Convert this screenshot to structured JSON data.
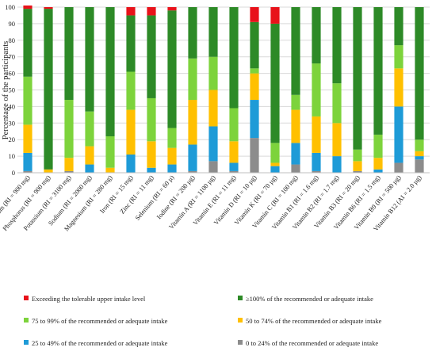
{
  "chart_data": {
    "type": "bar",
    "stacked": true,
    "ylabel": "Percentage of the participants",
    "ylim": [
      0,
      100
    ],
    "yticks": [
      0,
      10,
      20,
      30,
      40,
      50,
      60,
      70,
      80,
      90,
      100
    ],
    "grid": true,
    "legend_position": "bottom",
    "categories": [
      "Calcium (RI = 900 mg)",
      "Phosphorus (RI = 900 mg)",
      "Potassium (RI = 3100 mg)",
      "Sodium (RI = 2000 mg)",
      "Magnesium (RI = 280 mg)",
      "Iron (RI = 15 mg)",
      "Zinc (RI = 11 mg)",
      "Selenium (RI = 60 µ)",
      "Iodine (RI = 200 µg)",
      "Vitamin A (RI = 1100 µg)",
      "Vitamin E (RI = 11 mg)",
      "Vitamin D (RI = 10 µg)",
      "Vitamin K (RI = 70 µg)",
      "Vitamin C (RI = 100 mg)",
      "Vitamin B1 (RI = 1.6 mg)",
      "Vitamin B2 (RI = 1.7 mg)",
      "Vitamin B3 (RI = 20 mg)",
      "Vitamin B6 (RI = 1.5 mg)",
      "Vitamin B9 (RI = 500 µg)",
      "Vitamin B12 (AI = 2.0 µg)"
    ],
    "series": [
      {
        "name": "0 to 24% of the recommended or adequate intake",
        "color": "#8c8c8c",
        "values": [
          1,
          0,
          1,
          0,
          0,
          0,
          0,
          0,
          1,
          7,
          1,
          21,
          0,
          5,
          1,
          0,
          1,
          0,
          6,
          8
        ]
      },
      {
        "name": "25 to 49% of the recommended or adequate intake",
        "color": "#1e9bd7",
        "values": [
          11,
          0,
          0,
          5,
          0,
          11,
          3,
          5,
          16,
          21,
          5,
          23,
          4,
          13,
          11,
          10,
          0,
          2,
          34,
          2
        ]
      },
      {
        "name": "50 to 74% of the recommended or adequate intake",
        "color": "#ffc000",
        "values": [
          17,
          2,
          8,
          11,
          3,
          27,
          16,
          10,
          27,
          22,
          13,
          16,
          2,
          20,
          22,
          20,
          6,
          7,
          23,
          3
        ]
      },
      {
        "name": "75 to 99% of the recommended or adequate intake",
        "color": "#7dd33c",
        "values": [
          29,
          0,
          35,
          21,
          19,
          23,
          26,
          12,
          25,
          20,
          20,
          3,
          12,
          9,
          32,
          24,
          7,
          14,
          14,
          7
        ]
      },
      {
        "name": "≥100% of the recommended or adequate intake",
        "color": "#2d8a27",
        "values": [
          41,
          97,
          56,
          63,
          78,
          34,
          50,
          71,
          31,
          30,
          61,
          28,
          72,
          53,
          34,
          46,
          86,
          77,
          23,
          80
        ]
      },
      {
        "name": "Exceeding the tolerable upper intake level",
        "color": "#e8121a",
        "values": [
          2,
          1,
          0,
          0,
          0,
          5,
          5,
          2,
          0,
          0,
          0,
          9,
          10,
          0,
          0,
          0,
          0,
          0,
          0,
          0
        ]
      }
    ],
    "legend_order": [
      5,
      4,
      3,
      2,
      1,
      0
    ]
  }
}
